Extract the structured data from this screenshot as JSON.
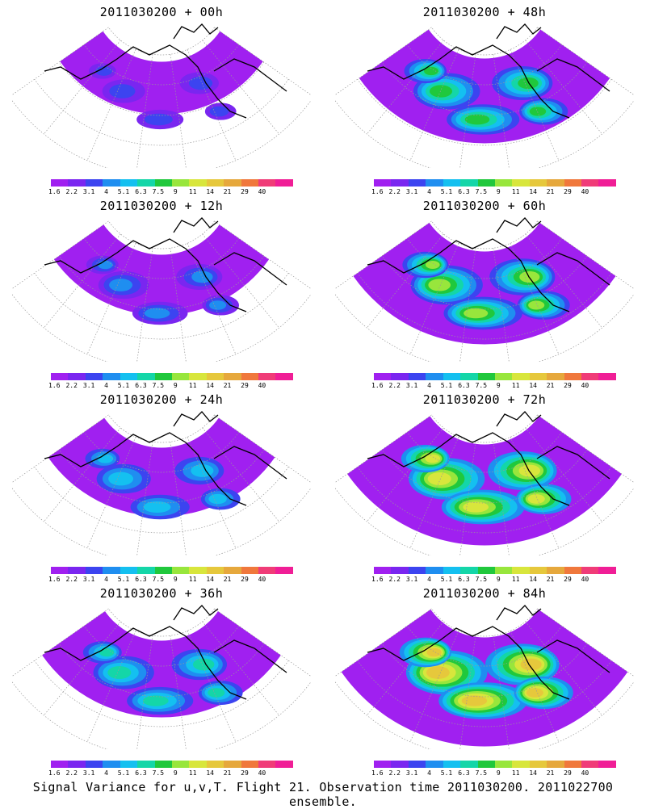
{
  "panels": [
    {
      "title": "2011030200 + 00h",
      "intensity": 0.15
    },
    {
      "title": "2011030200 + 48h",
      "intensity": 0.55
    },
    {
      "title": "2011030200 + 12h",
      "intensity": 0.25
    },
    {
      "title": "2011030200 + 60h",
      "intensity": 0.65
    },
    {
      "title": "2011030200 + 24h",
      "intensity": 0.35
    },
    {
      "title": "2011030200 + 72h",
      "intensity": 0.75
    },
    {
      "title": "2011030200 + 36h",
      "intensity": 0.45
    },
    {
      "title": "2011030200 + 84h",
      "intensity": 0.85
    }
  ],
  "legend": {
    "labels": [
      "1.6",
      "2.2",
      "3.1",
      "4",
      "5.1",
      "6.3",
      "7.5",
      "9",
      "11",
      "14",
      "21",
      "29",
      "40"
    ],
    "colors": [
      "#a020f0",
      "#7a26f0",
      "#3c44f0",
      "#1f8ef0",
      "#14c0f0",
      "#14d6a8",
      "#20c83c",
      "#98e63c",
      "#d8e63c",
      "#e6c83c",
      "#e6a83c",
      "#f0783c",
      "#f03c78",
      "#f01e96"
    ]
  },
  "footer": "Signal Variance for u,v,T. Flight 21. Observation time 2011030200. 2011022700 ensemble."
}
